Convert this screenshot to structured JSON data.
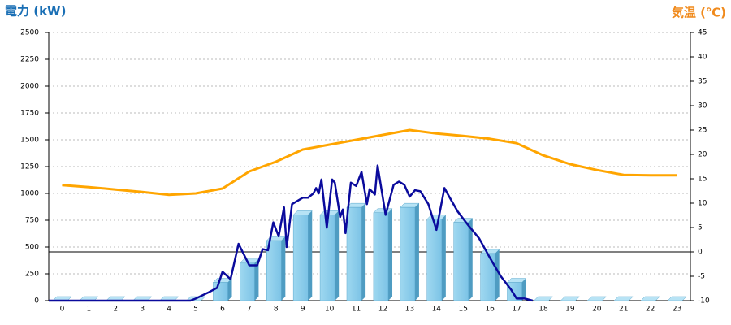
{
  "chart_data": {
    "type": "bar",
    "title": "電力 (kW)",
    "y2_title": "気温 (℃)",
    "categories": [
      0,
      1,
      2,
      3,
      4,
      5,
      6,
      7,
      8,
      9,
      10,
      11,
      12,
      13,
      14,
      15,
      16,
      17,
      18,
      19,
      20,
      21,
      22,
      23
    ],
    "xlim": [
      -0.5,
      23.5
    ],
    "ylim": [
      0,
      2500
    ],
    "yticks": [
      0,
      250,
      500,
      750,
      1000,
      1250,
      1500,
      1750,
      2000,
      2250,
      2500
    ],
    "y2lim": [
      -10,
      45
    ],
    "y2ticks": [
      -10,
      -5,
      0,
      5,
      10,
      15,
      20,
      25,
      30,
      35,
      40,
      45
    ],
    "grid": true,
    "series": [
      {
        "type": "bar",
        "color": "#87ceeb",
        "values": [
          0,
          0,
          0,
          0,
          0,
          0,
          170,
          350,
          560,
          800,
          800,
          870,
          820,
          870,
          760,
          730,
          440,
          170,
          0,
          0,
          0,
          0,
          0,
          0
        ]
      },
      {
        "type": "line",
        "color": "#0a0a9c",
        "x": [
          -0.5,
          4.8,
          5,
          5.5,
          5.8,
          6,
          6.3,
          6.6,
          7,
          7.3,
          7.5,
          7.7,
          7.9,
          8.1,
          8.3,
          8.4,
          8.6,
          9,
          9.2,
          9.4,
          9.5,
          9.6,
          9.7,
          9.9,
          10.1,
          10.2,
          10.4,
          10.5,
          10.6,
          10.8,
          11,
          11.2,
          11.4,
          11.5,
          11.7,
          11.8,
          12.1,
          12.4,
          12.6,
          12.8,
          13,
          13.2,
          13.4,
          13.7,
          14,
          14.3,
          14.5,
          14.8,
          15.2,
          15.6,
          16,
          16.4,
          16.8,
          17,
          17.3,
          17.6
        ],
        "values": [
          0,
          0,
          20,
          80,
          120,
          270,
          200,
          530,
          330,
          330,
          480,
          470,
          730,
          600,
          870,
          500,
          900,
          960,
          960,
          1000,
          1050,
          1000,
          1130,
          680,
          1130,
          1100,
          780,
          850,
          630,
          1100,
          1070,
          1200,
          900,
          1040,
          990,
          1260,
          800,
          1080,
          1110,
          1080,
          970,
          1030,
          1020,
          900,
          660,
          1050,
          960,
          830,
          700,
          580,
          400,
          230,
          100,
          20,
          20,
          0
        ]
      },
      {
        "type": "line",
        "axis": "y2",
        "color": "#ffa500",
        "values": [
          13.7,
          13.3,
          12.8,
          12.3,
          11.7,
          12,
          13,
          16.5,
          18.5,
          21,
          22,
          23,
          24,
          25,
          24.3,
          23.8,
          23.2,
          22.3,
          19.8,
          18,
          16.8,
          15.8,
          15.7,
          15.7
        ]
      }
    ]
  }
}
